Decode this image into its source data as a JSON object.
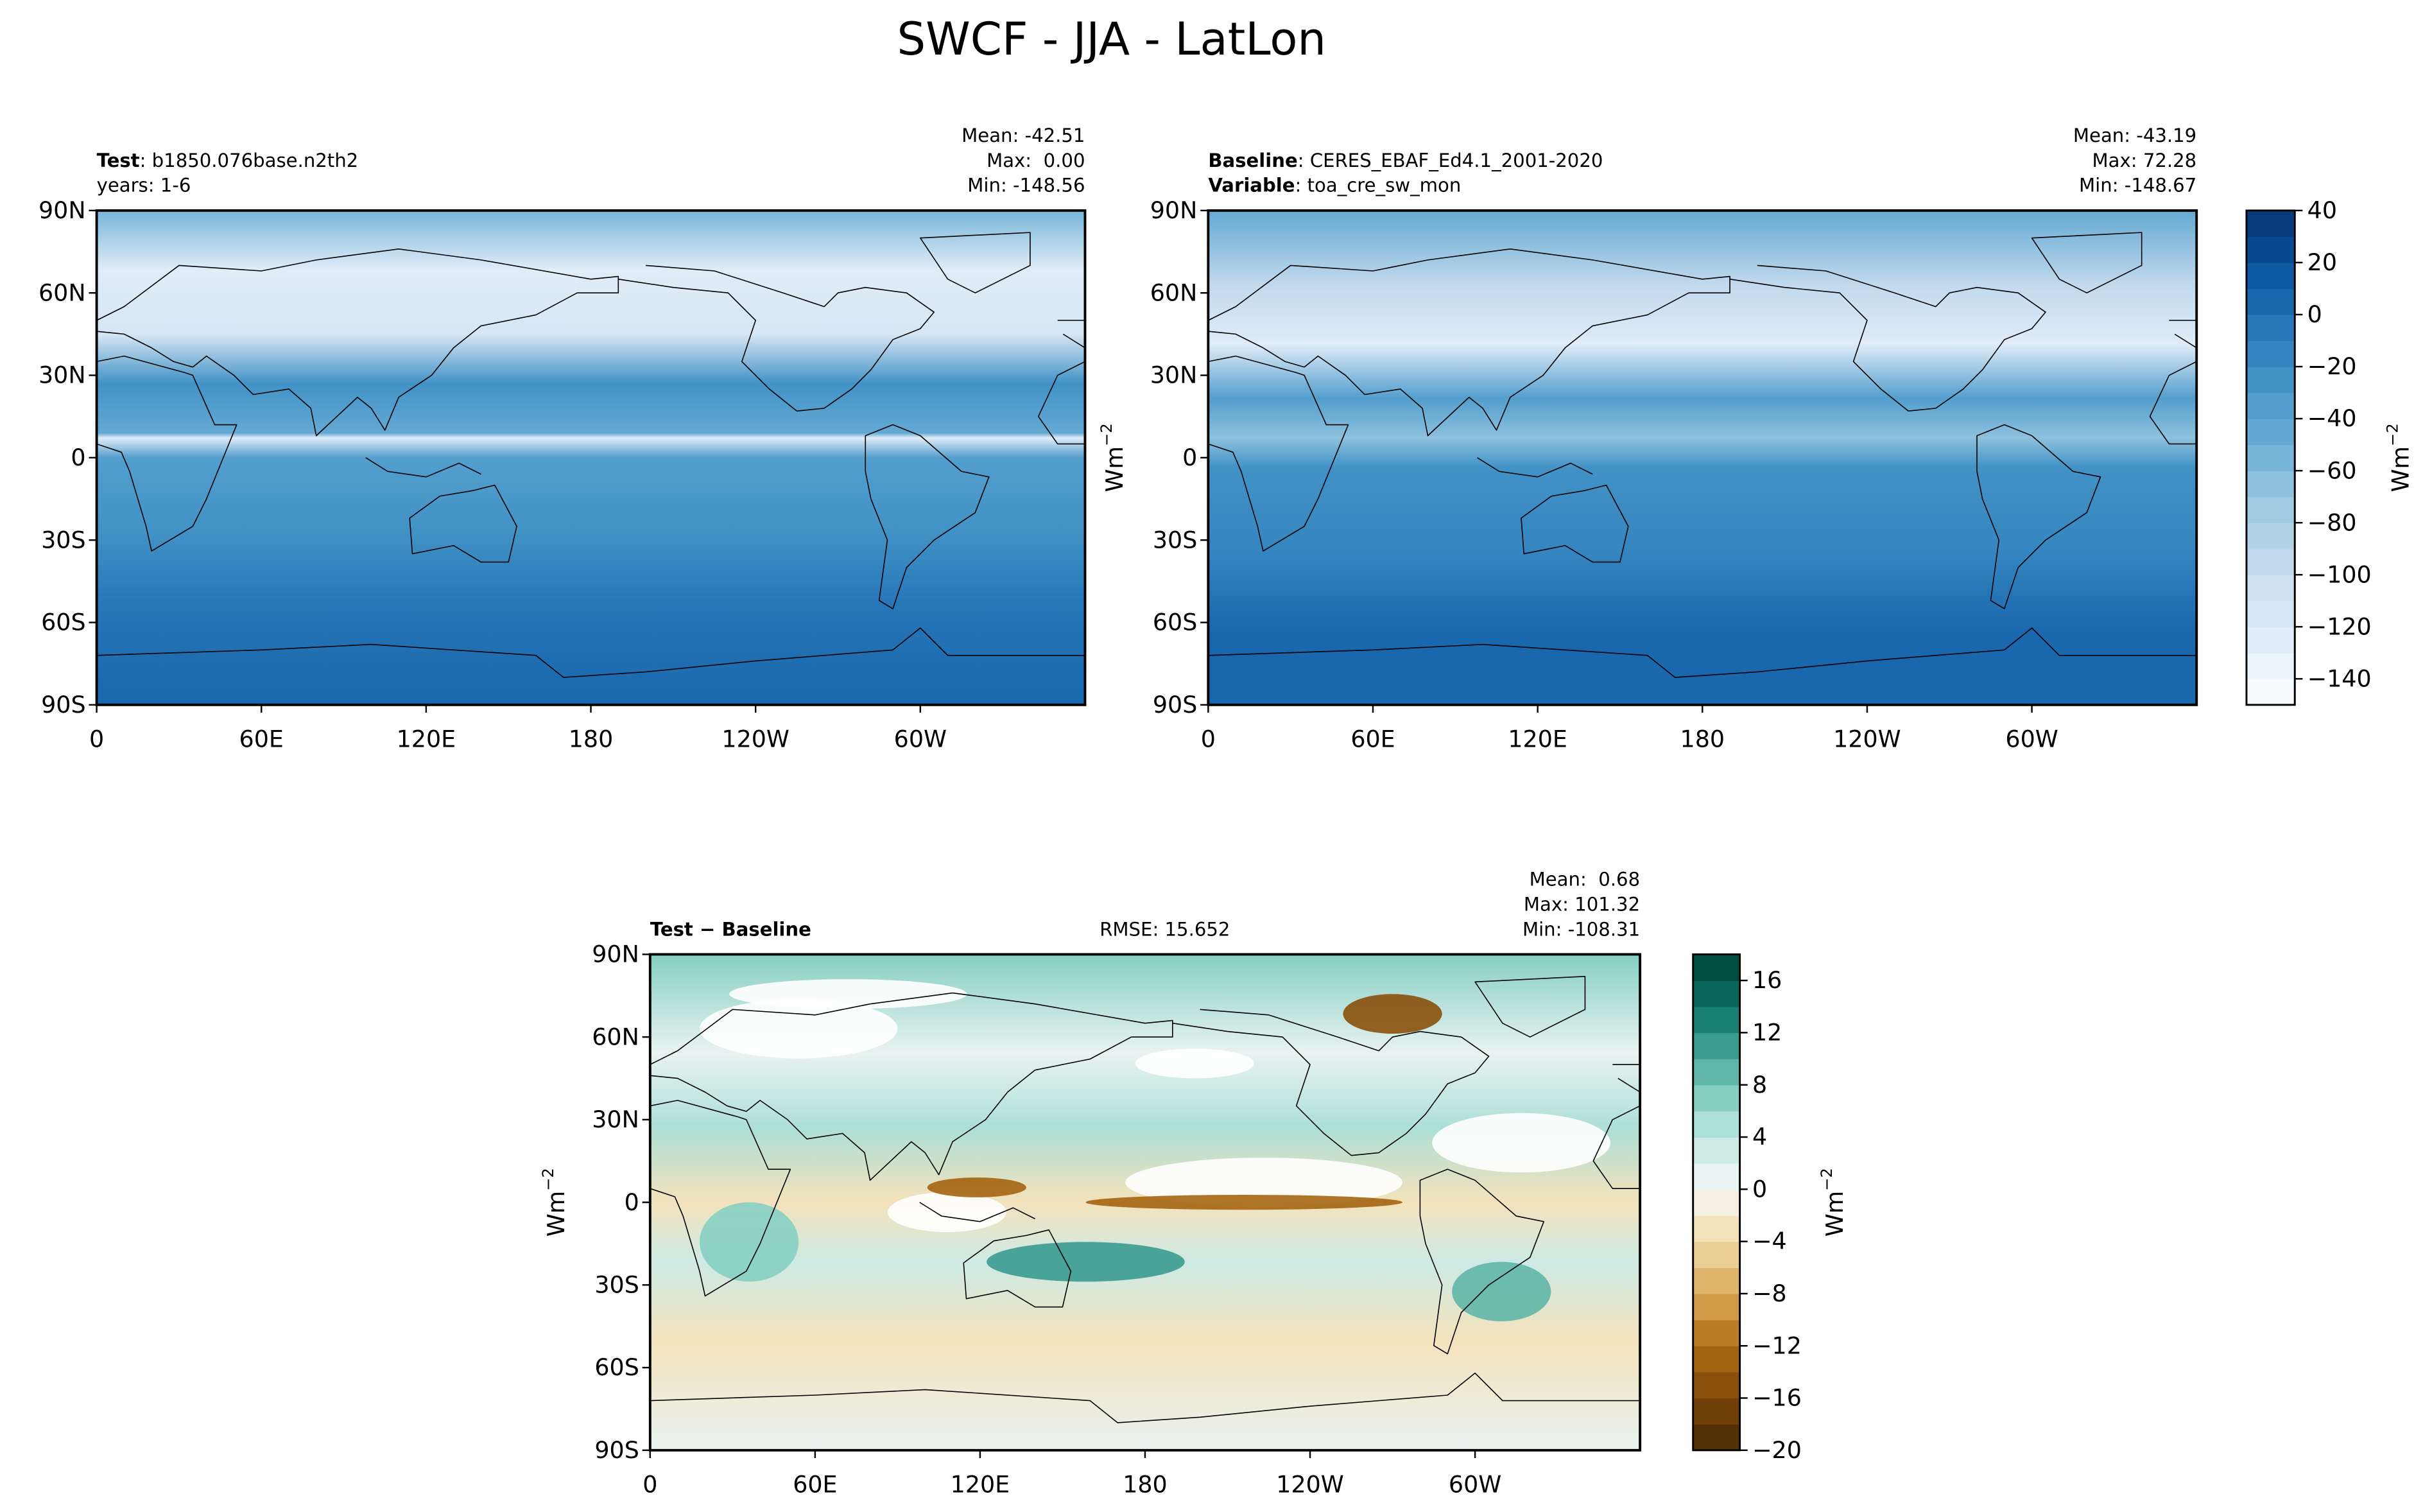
{
  "title": "SWCF - JJA - LatLon",
  "chart_data": [
    {
      "type": "map",
      "header_lines": [
        {
          "bold": "Test",
          "text": ": b1850.076base.n2th2"
        },
        {
          "text": "years: 1-6"
        }
      ],
      "stats": [
        "Mean: -42.51",
        "Max:  0.00",
        "Min: -148.56"
      ],
      "xlim": [
        0,
        360
      ],
      "xticks": [
        0,
        {
          "value": 60,
          "label": "60E"
        },
        {
          "value": 120,
          "label": "120E"
        },
        180,
        {
          "value": 240,
          "label": "120W"
        },
        {
          "value": 300,
          "label": "60W"
        }
      ],
      "ylim": [
        -90,
        90
      ],
      "yticks": [
        {
          "value": -90,
          "label": "90S"
        },
        {
          "value": -60,
          "label": "60S"
        },
        {
          "value": -30,
          "label": "30S"
        },
        0,
        {
          "value": 30,
          "label": "30N"
        },
        {
          "value": 60,
          "label": "60N"
        },
        {
          "value": 90,
          "label": "90N"
        }
      ],
      "colorbar": {
        "lim": [
          -150,
          40
        ],
        "ticks": [
          {
            "value": -140,
            "label": "−140"
          },
          {
            "value": -120,
            "label": "−120"
          },
          {
            "value": -100,
            "label": "−100"
          },
          {
            "value": -80,
            "label": "−80"
          },
          {
            "value": -60,
            "label": "−60"
          },
          {
            "value": -40,
            "label": "−40"
          },
          {
            "value": -20,
            "label": "−20"
          },
          0,
          20,
          40
        ],
        "colors": [
          "#f7fbff",
          "#ebf3fb",
          "#e0ecf8",
          "#d6e6f4",
          "#cde0f1",
          "#c1d9ed",
          "#b2d2e8",
          "#a0cbe2",
          "#8dc1dd",
          "#77b5d9",
          "#64a9d3",
          "#539ecd",
          "#4292c6",
          "#3484bf",
          "#2676b8",
          "#1967ad",
          "#0e59a2",
          "#084a91",
          "#083b7c"
        ],
        "label": {
          "text": "Wm",
          "sup": "−2"
        }
      }
    },
    {
      "type": "map",
      "header_lines": [
        {
          "bold": "Baseline",
          "text": ": CERES_EBAF_Ed4.1_2001-2020"
        },
        {
          "bold": "Variable",
          "text": ": toa_cre_sw_mon"
        }
      ],
      "stats": [
        "Mean: -43.19",
        "Max: 72.28",
        "Min: -148.67"
      ],
      "ylabel": {
        "text": "Wm",
        "sup": "−2"
      },
      "xlim": [
        0,
        360
      ],
      "xticks": [
        0,
        {
          "value": 60,
          "label": "60E"
        },
        {
          "value": 120,
          "label": "120E"
        },
        180,
        {
          "value": 240,
          "label": "120W"
        },
        {
          "value": 300,
          "label": "60W"
        }
      ],
      "ylim": [
        -90,
        90
      ],
      "yticks": [
        {
          "value": -90,
          "label": "90S"
        },
        {
          "value": -60,
          "label": "60S"
        },
        {
          "value": -30,
          "label": "30S"
        },
        0,
        {
          "value": 30,
          "label": "30N"
        },
        {
          "value": 60,
          "label": "60N"
        },
        {
          "value": 90,
          "label": "90N"
        }
      ]
    },
    {
      "type": "map",
      "header_lines": [
        {
          "bold": "Test − Baseline"
        }
      ],
      "center_text": "RMSE: 15.652",
      "stats": [
        "Mean:  0.68",
        "Max: 101.32",
        "Min: -108.31"
      ],
      "ylabel": {
        "text": "Wm",
        "sup": "−2"
      },
      "xlim": [
        0,
        360
      ],
      "xticks": [
        0,
        {
          "value": 60,
          "label": "60E"
        },
        {
          "value": 120,
          "label": "120E"
        },
        180,
        {
          "value": 240,
          "label": "120W"
        },
        {
          "value": 300,
          "label": "60W"
        }
      ],
      "ylim": [
        -90,
        90
      ],
      "yticks": [
        {
          "value": -90,
          "label": "90S"
        },
        {
          "value": -60,
          "label": "60S"
        },
        {
          "value": -30,
          "label": "30S"
        },
        0,
        {
          "value": 30,
          "label": "30N"
        },
        {
          "value": 60,
          "label": "60N"
        },
        {
          "value": 90,
          "label": "90N"
        }
      ],
      "colorbar": {
        "lim": [
          -20,
          18
        ],
        "ticks": [
          {
            "value": -20,
            "label": "−20"
          },
          {
            "value": -16,
            "label": "−16"
          },
          {
            "value": -12,
            "label": "−12"
          },
          {
            "value": -8,
            "label": "−8"
          },
          {
            "value": -4,
            "label": "−4"
          },
          0,
          4,
          8,
          12,
          16
        ],
        "colors": [
          "#543005",
          "#6f3f08",
          "#8a500b",
          "#a4640f",
          "#bc7c25",
          "#cf9a47",
          "#dfb56d",
          "#ebcd94",
          "#f4e2bb",
          "#f5f0e4",
          "#e9f3f1",
          "#cdeae5",
          "#acdfd6",
          "#86cfc2",
          "#5fb6a9",
          "#3a9b90",
          "#1a7f76",
          "#08665c",
          "#004e42"
        ],
        "label": {
          "text": "Wm",
          "sup": "−2"
        }
      }
    }
  ]
}
